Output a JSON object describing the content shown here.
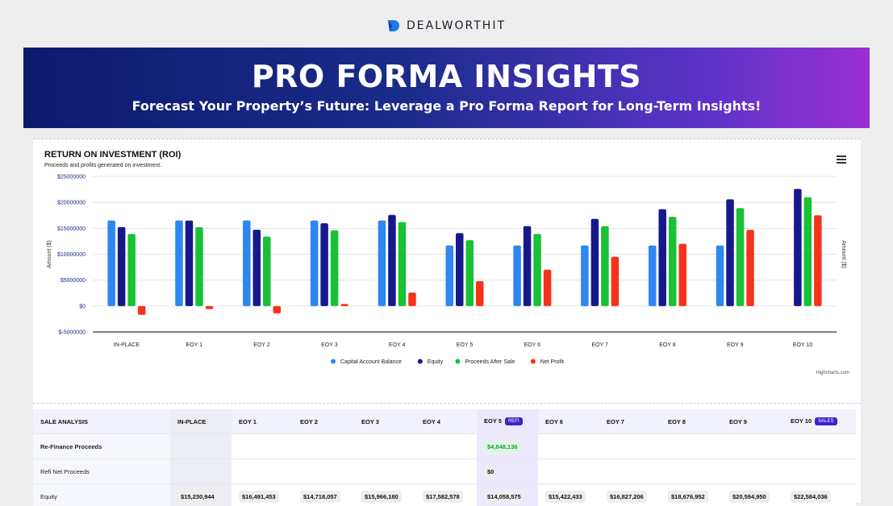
{
  "brand": {
    "name": "DEALWORTHIT"
  },
  "banner": {
    "title": "PRO FORMA INSIGHTS",
    "subtitle": "Forecast Your Property’s Future: Leverage a Pro Forma Report for Long-Term Insights!"
  },
  "chart": {
    "title": "RETURN ON INVESTMENT (ROI)",
    "subtitle": "Proceeds and profits generated on investment.",
    "credit": "Highcharts.com"
  },
  "chart_data": {
    "type": "bar",
    "title": "RETURN ON INVESTMENT (ROI)",
    "subtitle": "Proceeds and profits generated on investment.",
    "xlabel": "",
    "ylabel": "Amount ($)",
    "ylabel_right": "Amount ($)",
    "ylim": [
      -5000000,
      25000000
    ],
    "yticks": [
      -5000000,
      0,
      5000000,
      10000000,
      15000000,
      20000000,
      25000000
    ],
    "ytick_labels": [
      "$-5000000",
      "$0",
      "$5000000",
      "$10000000",
      "$15000000",
      "$20000000",
      "$25000000"
    ],
    "grid": true,
    "legend_position": "bottom-center",
    "categories": [
      "IN-PLACE",
      "EOY 1",
      "EOY 2",
      "EOY 3",
      "EOY 4",
      "EOY 5",
      "EOY 6",
      "EOY 7",
      "EOY 8",
      "EOY 9",
      "EOY 10"
    ],
    "series": [
      {
        "name": "Capital Account Balance",
        "color": "#2d86f2",
        "values": [
          16500000,
          16500000,
          16500000,
          16500000,
          16500000,
          11700000,
          11700000,
          11700000,
          11700000,
          11700000,
          null
        ]
      },
      {
        "name": "Equity",
        "color": "#16198a",
        "values": [
          15230944,
          16491453,
          14718057,
          15966180,
          17582578,
          14058575,
          15422433,
          16827206,
          18676952,
          20594950,
          22584036
        ]
      },
      {
        "name": "Proceeds After Sale",
        "color": "#19c134",
        "values": [
          13900000,
          15200000,
          13400000,
          14600000,
          16200000,
          12700000,
          13900000,
          15400000,
          17200000,
          18900000,
          21000000
        ]
      },
      {
        "name": "Net Profit",
        "color": "#f5331a",
        "values": [
          -1700000,
          -600000,
          -1400000,
          400000,
          2600000,
          4800000,
          7000000,
          9500000,
          12000000,
          14700000,
          17500000
        ]
      }
    ]
  },
  "table": {
    "headers": [
      "SALE ANALYSIS",
      "IN-PLACE",
      "EOY 1",
      "EOY 2",
      "EOY 3",
      "EOY 4",
      "EOY 5",
      "EOY 6",
      "EOY 7",
      "EOY 8",
      "EOY 9",
      "EOY 10"
    ],
    "badges": {
      "eoy5": "REFI",
      "eoy10": "SALES"
    },
    "rows": [
      {
        "label": "Re-Finance Proceeds",
        "bold": true,
        "cells": [
          "",
          "",
          "",
          "",
          "",
          "$4,848,136",
          "",
          "",
          "",
          "",
          ""
        ]
      },
      {
        "label": "Refi Net Proceeds",
        "bold": false,
        "cells": [
          "",
          "",
          "",
          "",
          "",
          "$0",
          "",
          "",
          "",
          "",
          ""
        ]
      },
      {
        "label": "Equity",
        "bold": false,
        "cells": [
          "$15,230,944",
          "$16,491,453",
          "$14,718,057",
          "$15,966,180",
          "$17,582,578",
          "$14,058,575",
          "$15,422,433",
          "$16,827,206",
          "$18,676,952",
          "$20,594,950",
          "$22,584,036"
        ]
      }
    ]
  }
}
